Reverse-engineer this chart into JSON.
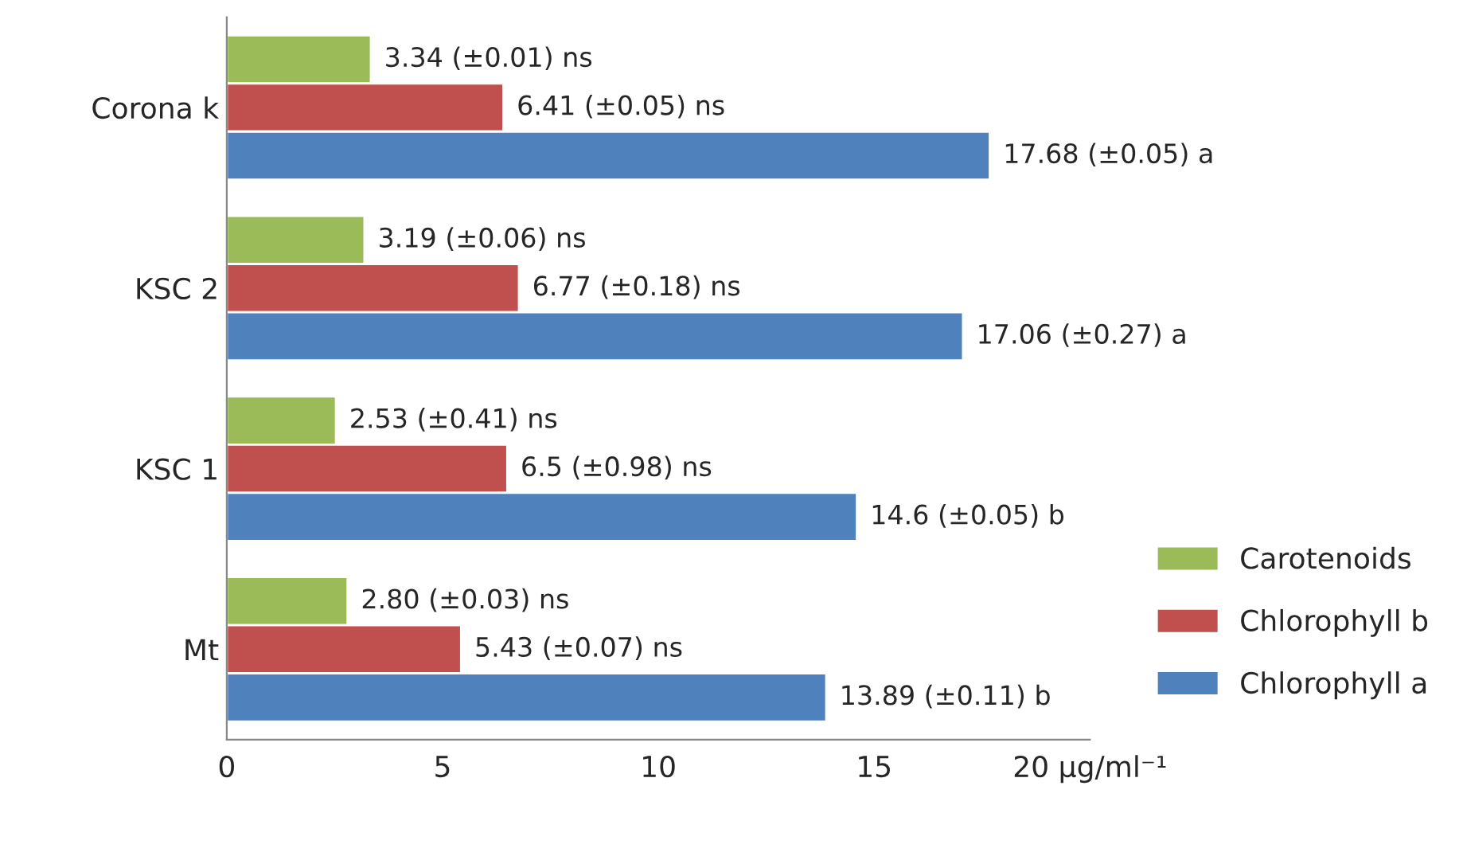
{
  "chart_data": {
    "type": "bar",
    "orientation": "horizontal",
    "categories": [
      "Corona k",
      "KSC 2",
      "KSC 1",
      "Mt"
    ],
    "series": [
      {
        "name": "Carotenoids",
        "color": "#9bbb59",
        "values": [
          3.34,
          3.19,
          2.53,
          2.8
        ],
        "value_labels": [
          "3.34 (±0.01) ns",
          "3.19 (±0.06) ns",
          "2.53 (±0.41) ns",
          "2.80 (±0.03) ns"
        ]
      },
      {
        "name": "Chlorophyll b",
        "color": "#c0504d",
        "values": [
          6.41,
          6.77,
          6.5,
          5.43
        ],
        "value_labels": [
          "6.41 (±0.05) ns",
          "6.77 (±0.18) ns",
          "6.5 (±0.98) ns",
          "5.43 (±0.07) ns"
        ]
      },
      {
        "name": "Chlorophyll a",
        "color": "#4f81bd",
        "values": [
          17.68,
          17.06,
          14.6,
          13.89
        ],
        "value_labels": [
          "17.68 (±0.05) a",
          "17.06 (±0.27) a",
          "14.6 (±0.05) b",
          "13.89 (±0.11) b"
        ]
      }
    ],
    "xlim": [
      0,
      20
    ],
    "xticks": [
      0,
      5,
      10,
      15,
      {
        "value": 20,
        "label": "20 μg/ml⁻¹"
      }
    ],
    "grid": false,
    "legend": "right"
  }
}
